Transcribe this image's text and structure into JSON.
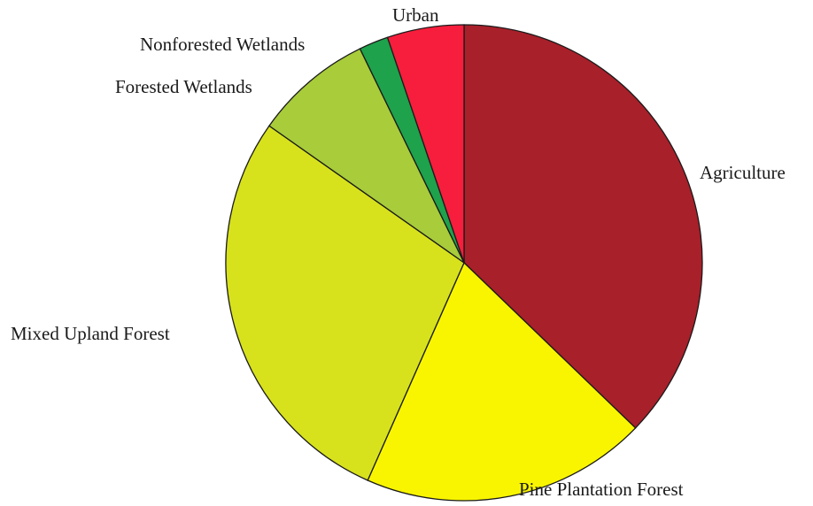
{
  "chart_data": {
    "type": "pie",
    "title": "",
    "start_angle_deg": 0,
    "direction": "clockwise",
    "slices": [
      {
        "label": "Agriculture",
        "value": 39.3,
        "color": "#a8202a"
      },
      {
        "label": "Pine Plantation Forest",
        "value": 20.5,
        "color": "#f9f500"
      },
      {
        "label": "Mixed Upland Forest",
        "value": 29.7,
        "color": "#d7e21c"
      },
      {
        "label": "Forested Wetlands",
        "value": 8.5,
        "color": "#a8cc3a"
      },
      {
        "label": "Nonforested Wetlands",
        "value": 2.1,
        "color": "#1ea24c"
      },
      {
        "label": "Urban",
        "value": 5.5,
        "color": "#f61e3c"
      }
    ]
  }
}
